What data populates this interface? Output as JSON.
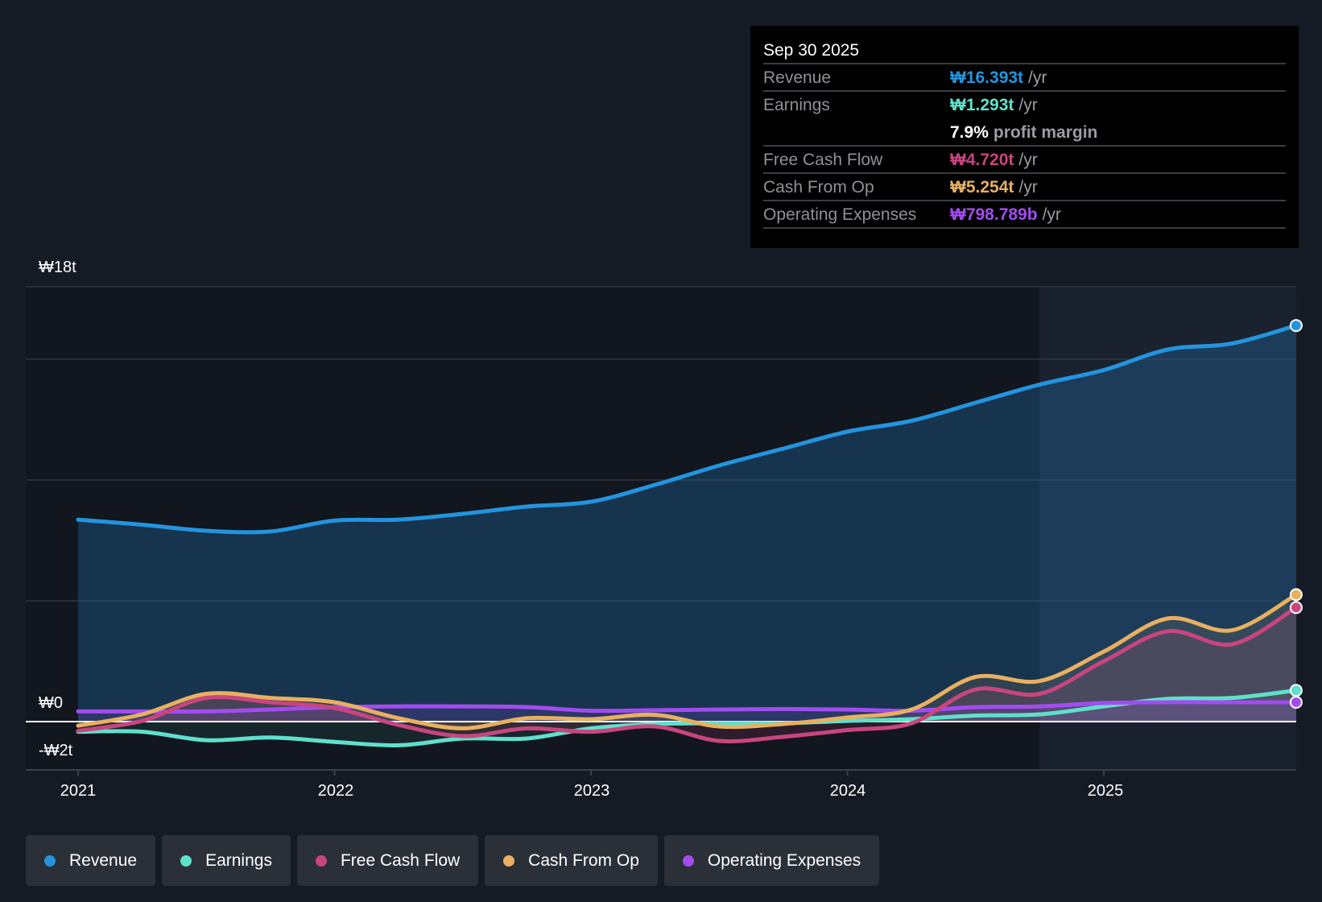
{
  "tooltip": {
    "date": "Sep 30 2025",
    "rows": [
      {
        "label": "Revenue",
        "value": "₩16.393t",
        "unit": "/yr",
        "color": "#2394df"
      },
      {
        "label": "Earnings",
        "value": "₩1.293t",
        "unit": "/yr",
        "color": "#5fe0cb"
      },
      {
        "label": "Free Cash Flow",
        "value": "₩4.720t",
        "unit": "/yr",
        "color": "#c9457f"
      },
      {
        "label": "Cash From Op",
        "value": "₩5.254t",
        "unit": "/yr",
        "color": "#e8b060"
      },
      {
        "label": "Operating Expenses",
        "value": "₩798.789b",
        "unit": "/yr",
        "color": "#a24cf0"
      }
    ],
    "profit_margin_pct": "7.9%",
    "profit_margin_label": "profit margin"
  },
  "chart_data": {
    "type": "line",
    "title": "",
    "xlabel": "",
    "ylabel": "",
    "ylim": [
      -2,
      18
    ],
    "xlim": [
      2020.8,
      2025.75
    ],
    "y_ticks": [
      {
        "value": 18,
        "label": "₩18t"
      },
      {
        "value": 0,
        "label": "₩0"
      },
      {
        "value": -2,
        "label": "-₩2t"
      }
    ],
    "gridlines": [
      18,
      15,
      10,
      5
    ],
    "x_ticks": [
      {
        "value": 2021,
        "label": "2021"
      },
      {
        "value": 2022,
        "label": "2022"
      },
      {
        "value": 2023,
        "label": "2023"
      },
      {
        "value": 2024,
        "label": "2024"
      },
      {
        "value": 2025,
        "label": "2025"
      }
    ],
    "highlight_from": 2024.75,
    "x": [
      2021,
      2021.25,
      2021.5,
      2021.75,
      2022,
      2022.25,
      2022.5,
      2022.75,
      2023,
      2023.25,
      2023.5,
      2023.75,
      2024,
      2024.25,
      2024.5,
      2024.75,
      2025,
      2025.25,
      2025.5,
      2025.75
    ],
    "series": [
      {
        "name": "Revenue",
        "color": "#2394df",
        "values": [
          8.36,
          8.15,
          7.9,
          7.87,
          8.32,
          8.36,
          8.6,
          8.9,
          9.1,
          9.8,
          10.6,
          11.3,
          12.0,
          12.45,
          13.2,
          13.95,
          14.55,
          15.4,
          15.65,
          16.393
        ]
      },
      {
        "name": "Earnings",
        "color": "#5fe0cb",
        "values": [
          -0.42,
          -0.42,
          -0.77,
          -0.66,
          -0.84,
          -0.98,
          -0.7,
          -0.7,
          -0.28,
          -0.1,
          -0.07,
          -0.07,
          0.03,
          0.1,
          0.25,
          0.3,
          0.63,
          0.94,
          0.98,
          1.293
        ]
      },
      {
        "name": "Free Cash Flow",
        "color": "#c9457f",
        "values": [
          -0.38,
          0.03,
          0.98,
          0.8,
          0.56,
          -0.14,
          -0.6,
          -0.28,
          -0.42,
          -0.2,
          -0.8,
          -0.63,
          -0.35,
          -0.07,
          1.33,
          1.15,
          2.5,
          3.74,
          3.2,
          4.72
        ]
      },
      {
        "name": "Cash From Op",
        "color": "#e8b060",
        "values": [
          -0.17,
          0.3,
          1.15,
          0.98,
          0.8,
          0.14,
          -0.28,
          0.14,
          0.1,
          0.28,
          -0.2,
          -0.1,
          0.17,
          0.5,
          1.85,
          1.68,
          2.9,
          4.27,
          3.78,
          5.254
        ]
      },
      {
        "name": "Operating Expenses",
        "color": "#a24cf0",
        "values": [
          0.42,
          0.42,
          0.42,
          0.5,
          0.6,
          0.63,
          0.63,
          0.6,
          0.45,
          0.47,
          0.5,
          0.52,
          0.5,
          0.45,
          0.6,
          0.63,
          0.77,
          0.8,
          0.8,
          0.799
        ]
      }
    ]
  },
  "legend": [
    {
      "label": "Revenue",
      "color": "#2394df"
    },
    {
      "label": "Earnings",
      "color": "#5fe0cb"
    },
    {
      "label": "Free Cash Flow",
      "color": "#c9457f"
    },
    {
      "label": "Cash From Op",
      "color": "#e8b060"
    },
    {
      "label": "Operating Expenses",
      "color": "#a24cf0"
    }
  ]
}
